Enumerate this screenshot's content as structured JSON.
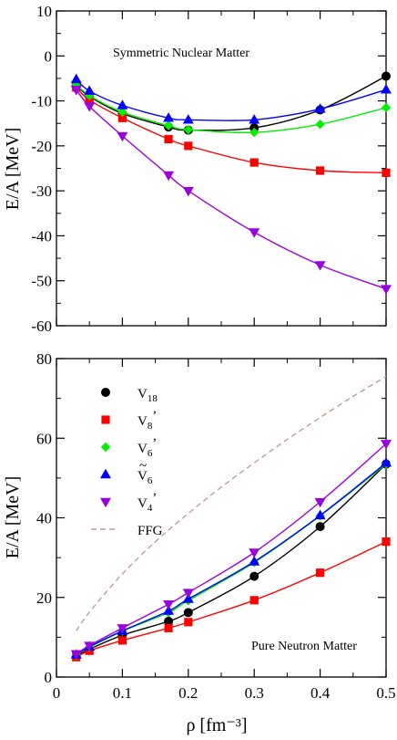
{
  "chart_data": [
    {
      "type": "line",
      "annotation": "Symmetric Nuclear Matter",
      "ylabel": "E/A [MeV]",
      "xlim": [
        0,
        0.5
      ],
      "ylim": [
        -60,
        10
      ],
      "xticks": [
        0,
        0.1,
        0.2,
        0.3,
        0.4,
        0.5
      ],
      "yticks": [
        -60,
        -50,
        -40,
        -30,
        -20,
        -10,
        0,
        10
      ],
      "ytick_labels": [
        "-60",
        "-50",
        "-40",
        "-30",
        "-20",
        "-10",
        "0",
        "10"
      ],
      "series": [
        {
          "name": "V18",
          "color": "#000000",
          "marker": "circle",
          "x": [
            0.03,
            0.05,
            0.1,
            0.17,
            0.2,
            0.3,
            0.4,
            0.5
          ],
          "y": [
            -6.5,
            -9.0,
            -12.8,
            -15.8,
            -16.5,
            -16.0,
            -12.0,
            -4.5
          ]
        },
        {
          "name": "V8'",
          "color": "#ff0000",
          "marker": "square",
          "x": [
            0.03,
            0.05,
            0.1,
            0.17,
            0.2,
            0.3,
            0.4,
            0.5
          ],
          "y": [
            -7.0,
            -9.8,
            -13.8,
            -18.5,
            -20.0,
            -23.7,
            -25.5,
            -26.0
          ]
        },
        {
          "name": "V6'",
          "color": "#00ee00",
          "marker": "diamond",
          "x": [
            0.03,
            0.05,
            0.1,
            0.17,
            0.2,
            0.3,
            0.4,
            0.5
          ],
          "y": [
            -6.3,
            -8.8,
            -12.5,
            -15.5,
            -16.4,
            -17.0,
            -15.2,
            -11.5
          ]
        },
        {
          "name": "Ṽ6",
          "color": "#0000ff",
          "marker": "triangle-up",
          "x": [
            0.03,
            0.05,
            0.1,
            0.17,
            0.2,
            0.3,
            0.4,
            0.5
          ],
          "y": [
            -5.2,
            -7.8,
            -11.0,
            -13.8,
            -14.2,
            -14.2,
            -11.8,
            -7.5
          ]
        },
        {
          "name": "V4'",
          "color": "#9900dd",
          "marker": "triangle-down",
          "x": [
            0.03,
            0.05,
            0.1,
            0.17,
            0.2,
            0.3,
            0.4,
            0.5
          ],
          "y": [
            -7.5,
            -11.2,
            -17.8,
            -26.5,
            -30.0,
            -39.2,
            -46.5,
            -51.8
          ]
        }
      ]
    },
    {
      "type": "line",
      "annotation": "Pure Neutron Matter",
      "xlabel": "ρ [fm⁻³]",
      "ylabel": "E/A [MeV]",
      "xlim": [
        0,
        0.5
      ],
      "ylim": [
        0,
        80
      ],
      "xticks": [
        0,
        0.1,
        0.2,
        0.3,
        0.4,
        0.5
      ],
      "xtick_labels": [
        "0",
        "0.1",
        "0.2",
        "0.3",
        "0.4",
        "0.5"
      ],
      "yticks": [
        0,
        20,
        40,
        60,
        80
      ],
      "ytick_labels": [
        "0",
        "20",
        "40",
        "60",
        "80"
      ],
      "legend_position": "top-left",
      "series": [
        {
          "name": "V18",
          "color": "#000000",
          "marker": "circle",
          "x": [
            0.03,
            0.05,
            0.1,
            0.17,
            0.2,
            0.3,
            0.4,
            0.5
          ],
          "y": [
            5.2,
            7.0,
            10.5,
            14.0,
            16.2,
            25.3,
            37.8,
            53.5
          ]
        },
        {
          "name": "V8'",
          "color": "#ff0000",
          "marker": "square",
          "x": [
            0.03,
            0.05,
            0.1,
            0.17,
            0.2,
            0.3,
            0.4,
            0.5
          ],
          "y": [
            5.0,
            6.6,
            9.2,
            12.3,
            13.8,
            19.3,
            26.2,
            34.0
          ]
        },
        {
          "name": "V6'",
          "color": "#00ee00",
          "marker": "diamond",
          "x": [
            0.03,
            0.05,
            0.1,
            0.17,
            0.2,
            0.3,
            0.4,
            0.5
          ],
          "y": [
            5.5,
            7.5,
            11.5,
            16.2,
            19.2,
            28.8,
            40.5,
            53.5
          ]
        },
        {
          "name": "Ṽ6",
          "color": "#0000ff",
          "marker": "triangle-up",
          "x": [
            0.03,
            0.05,
            0.1,
            0.17,
            0.2,
            0.3,
            0.4,
            0.5
          ],
          "y": [
            5.6,
            7.6,
            11.6,
            16.6,
            19.6,
            29.0,
            40.6,
            53.8
          ]
        },
        {
          "name": "V4'",
          "color": "#9900dd",
          "marker": "triangle-down",
          "x": [
            0.03,
            0.05,
            0.1,
            0.17,
            0.2,
            0.3,
            0.4,
            0.5
          ],
          "y": [
            5.8,
            7.9,
            12.3,
            18.3,
            21.2,
            31.3,
            44.0,
            58.6
          ]
        },
        {
          "name": "FFG",
          "color": "#c49a9a",
          "marker": "none",
          "dashed": true,
          "x": [
            0.03,
            0.05,
            0.1,
            0.15,
            0.2,
            0.25,
            0.3,
            0.35,
            0.4,
            0.45,
            0.5
          ],
          "y": [
            11.6,
            16.3,
            25.9,
            34.0,
            41.1,
            47.7,
            53.8,
            59.7,
            65.2,
            70.5,
            75.5
          ]
        }
      ],
      "legend": [
        {
          "base": "V",
          "sub": "18",
          "sup": "",
          "tilde": false
        },
        {
          "base": "V",
          "sub": "8",
          "sup": "’",
          "tilde": false
        },
        {
          "base": "V",
          "sub": "6",
          "sup": "’",
          "tilde": false
        },
        {
          "base": "V",
          "sub": "6",
          "sup": "",
          "tilde": true
        },
        {
          "base": "V",
          "sub": "4",
          "sup": "’",
          "tilde": false
        },
        {
          "base": "FFG",
          "sub": "",
          "sup": "",
          "tilde": false
        }
      ]
    }
  ]
}
